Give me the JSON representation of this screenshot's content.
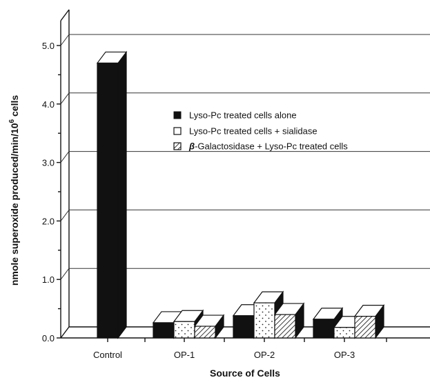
{
  "chart_data": {
    "type": "bar",
    "style": "3d",
    "title": "",
    "xlabel": "Source of Cells",
    "ylabel": "nmole superoxide produced/min/10",
    "ylabel_superscript": "6",
    "ylabel_suffix": " cells",
    "ylim": [
      0,
      5.0
    ],
    "yticks": [
      "0.0",
      "1.0",
      "2.0",
      "3.0",
      "4.0",
      "5.0"
    ],
    "grid": true,
    "legend_position": "upper-right",
    "categories": [
      "Control",
      "OP-1",
      "OP-2",
      "OP-3"
    ],
    "series": [
      {
        "name": "Lyso-Pc treated cells alone",
        "pattern": "solid-black",
        "values": [
          4.7,
          0.26,
          0.38,
          0.32
        ]
      },
      {
        "name": "Lyso-Pc treated cells + sialidase",
        "pattern": "dotted-white",
        "values": [
          null,
          0.28,
          0.6,
          0.18
        ]
      },
      {
        "name": "-Galactosidase + Lyso-Pc treated cells",
        "name_prefix_symbol": "β",
        "pattern": "hatched",
        "values": [
          null,
          0.2,
          0.4,
          0.37
        ]
      }
    ]
  }
}
